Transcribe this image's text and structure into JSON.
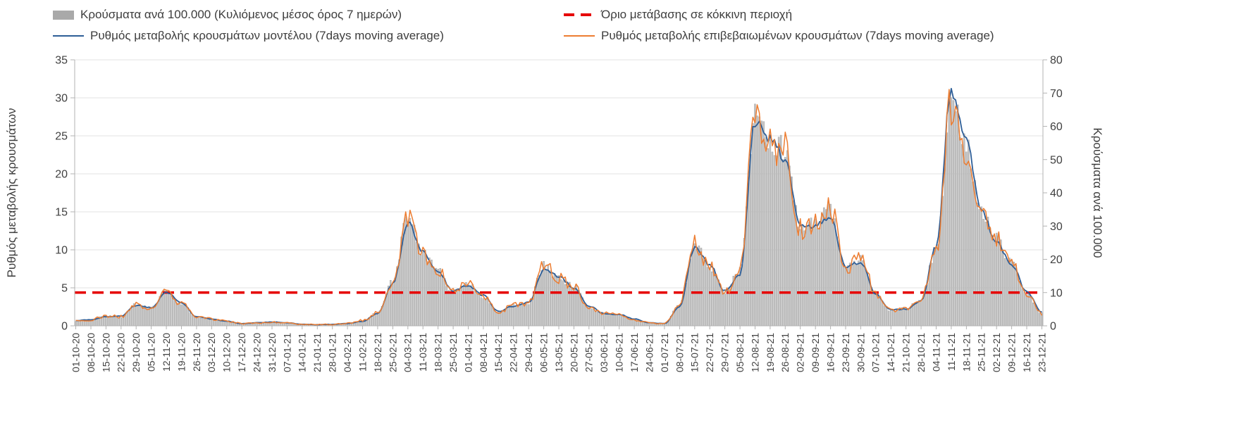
{
  "axes": {
    "left_label": "Ρυθμός μεταβολής κρουσμάτων",
    "right_label": "Κρούσματα ανά 100.000",
    "left_ticks": [
      0,
      5,
      10,
      15,
      20,
      25,
      30,
      35
    ],
    "right_ticks": [
      0,
      10,
      20,
      30,
      40,
      50,
      60,
      70,
      80
    ],
    "left_max": 35,
    "right_max": 80
  },
  "colors": {
    "bar": "#c2c2c2",
    "bar_edge": "#9b9b9b",
    "model": "#2e5e97",
    "confirmed": "#ed7d31",
    "threshold": "#e60000",
    "grid": "#e3e3e3",
    "axis": "#b3b3b3"
  },
  "chart_data": {
    "type": "bar+line",
    "title": "",
    "ylim_left": [
      0,
      35
    ],
    "ylim_right": [
      0,
      80
    ],
    "sampling_note": "series values sampled weekly at the x-axis tick dates",
    "categories": [
      "01-10-20",
      "08-10-20",
      "15-10-20",
      "22-10-20",
      "29-10-20",
      "05-11-20",
      "12-11-20",
      "19-11-20",
      "26-11-20",
      "03-12-20",
      "10-12-20",
      "17-12-20",
      "24-12-20",
      "31-12-20",
      "07-01-21",
      "14-01-21",
      "21-01-21",
      "28-01-21",
      "04-02-21",
      "11-02-21",
      "18-02-21",
      "25-02-21",
      "04-03-21",
      "11-03-21",
      "18-03-21",
      "25-03-21",
      "01-04-21",
      "08-04-21",
      "15-04-21",
      "22-04-21",
      "29-04-21",
      "06-05-21",
      "13-05-21",
      "20-05-21",
      "27-05-21",
      "03-06-21",
      "10-06-21",
      "17-06-21",
      "24-06-21",
      "01-07-21",
      "08-07-21",
      "15-07-21",
      "22-07-21",
      "29-07-21",
      "05-08-21",
      "12-08-21",
      "19-08-21",
      "26-08-21",
      "02-09-21",
      "09-09-21",
      "16-09-21",
      "23-09-21",
      "30-09-21",
      "07-10-21",
      "14-10-21",
      "21-10-21",
      "28-10-21",
      "04-11-21",
      "11-11-21",
      "18-11-21",
      "25-11-21",
      "02-12-21",
      "09-12-21",
      "16-12-21",
      "23-12-21"
    ],
    "series": [
      {
        "name": "Κρούσματα ανά 100.000 (Κυλιόμενος μέσος όρος 7 ημερών)",
        "type": "bar",
        "axis": "right",
        "values": [
          1.4,
          1.8,
          3.0,
          2.7,
          6.4,
          5.3,
          10.3,
          6.6,
          2.5,
          2.1,
          1.4,
          0.7,
          0.9,
          1.1,
          0.9,
          0.5,
          0.3,
          0.5,
          0.7,
          1.6,
          3.9,
          13.3,
          32.5,
          21.7,
          16.5,
          10.1,
          12.6,
          8.7,
          4.1,
          6.2,
          6.9,
          18.3,
          14.4,
          11.9,
          5.5,
          3.9,
          3.2,
          1.8,
          0.9,
          0.7,
          6.4,
          25.1,
          17.6,
          10.1,
          16.5,
          62.4,
          54.9,
          53.3,
          29.3,
          30.9,
          35.0,
          17.1,
          20.6,
          9.6,
          4.6,
          5.3,
          7.8,
          22.9,
          67.7,
          53.7,
          33.8,
          26.3,
          18.7,
          9.8,
          3.7
        ]
      },
      {
        "name": "Ρυθμός μεταβολής κρουσμάτων μοντέλου (7days moving average)",
        "type": "line",
        "axis": "left",
        "values": [
          0.7,
          0.8,
          1.2,
          1.3,
          2.7,
          2.4,
          4.4,
          3.0,
          1.2,
          0.9,
          0.6,
          0.3,
          0.4,
          0.5,
          0.4,
          0.2,
          0.15,
          0.2,
          0.3,
          0.6,
          1.6,
          5.5,
          13.5,
          9.8,
          7.0,
          4.6,
          5.3,
          4.0,
          1.9,
          2.6,
          3.1,
          7.4,
          6.5,
          5.0,
          2.6,
          1.6,
          1.5,
          0.9,
          0.4,
          0.3,
          2.5,
          10.3,
          8.0,
          4.6,
          6.8,
          26.8,
          24.6,
          22.0,
          13.0,
          13.2,
          14.3,
          7.8,
          8.4,
          4.1,
          2.1,
          2.2,
          3.3,
          10.5,
          31.0,
          24.5,
          15.0,
          11.0,
          8.0,
          4.5,
          1.8
        ]
      },
      {
        "name": "Ρυθμός μεταβολής επιβεβαιωμένων κρουσμάτων (7days moving average)",
        "type": "line",
        "axis": "left",
        "values": [
          0.6,
          0.8,
          1.3,
          1.2,
          2.8,
          2.3,
          4.5,
          2.9,
          1.1,
          0.9,
          0.6,
          0.3,
          0.4,
          0.5,
          0.4,
          0.2,
          0.15,
          0.2,
          0.3,
          0.7,
          1.7,
          5.8,
          14.2,
          9.5,
          7.2,
          4.4,
          5.5,
          3.8,
          1.8,
          2.7,
          3.0,
          8.0,
          6.3,
          5.2,
          2.4,
          1.7,
          1.4,
          0.8,
          0.4,
          0.3,
          2.8,
          11.0,
          7.7,
          4.4,
          7.2,
          27.3,
          24.0,
          23.3,
          12.8,
          13.5,
          15.3,
          7.5,
          9.0,
          4.2,
          2.0,
          2.3,
          3.4,
          10.0,
          29.6,
          23.5,
          14.8,
          11.5,
          8.2,
          4.3,
          1.6
        ]
      },
      {
        "name": "Όριο μετάβασης σε κόκκινη περιοχή",
        "type": "threshold",
        "axis": "right",
        "value": 10
      }
    ]
  }
}
